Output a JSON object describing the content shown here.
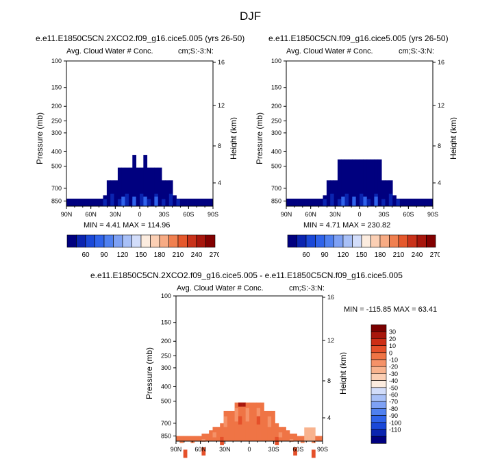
{
  "page": {
    "title": "DJF"
  },
  "colors": {
    "pos_scale": [
      "#00007f",
      "#0a24b0",
      "#1a48d8",
      "#2f63ea",
      "#4f80f0",
      "#7ea1f4",
      "#a8c0f7",
      "#d2ddfa",
      "#fcecdf",
      "#fbcfb4",
      "#f7ab84",
      "#f08050",
      "#e5582c",
      "#c9321a",
      "#a8160c",
      "#820000"
    ],
    "diff_scale": [
      "#00007f",
      "#0a24b0",
      "#1a48d8",
      "#2f63ea",
      "#4f80f0",
      "#7ea1f4",
      "#a8c0f7",
      "#d2ddfa",
      "#fcecdf",
      "#fbcfb4",
      "#f8b38e",
      "#f59268",
      "#ef7445",
      "#e5502a",
      "#cd2e16",
      "#a8160c",
      "#7a0000"
    ]
  },
  "chart_data": [
    {
      "type": "heatmap",
      "title": "e.e11.E1850C5CN.2XCO2.f09_g16.cice5.005 (yrs 26-50)",
      "left_label": "Avg. Cloud Water # Conc.",
      "right_label": "cm;S:-3:N:",
      "ylabel": "Pressure (mb)",
      "ylabel_right": "Height (km)",
      "x_ticks": [
        "90N",
        "60N",
        "30N",
        "0",
        "30S",
        "60S",
        "90S"
      ],
      "y_ticks": [
        "100",
        "150",
        "200",
        "250",
        "300",
        "400",
        "500",
        "700",
        "850"
      ],
      "y_right_ticks": [
        "16",
        "12",
        "8",
        "4"
      ],
      "stats": "MIN =   4.41  MAX = 114.96",
      "min": 4.41,
      "max": 114.96,
      "colorbar_labels": [
        "60",
        "90",
        "120",
        "150",
        "180",
        "210",
        "240",
        "270"
      ]
    },
    {
      "type": "heatmap",
      "title": "e.e11.E1850C5CN.f09_g16.cice5.005 (yrs 26-50)",
      "left_label": "Avg. Cloud Water # Conc.",
      "right_label": "cm;S:-3:N:",
      "ylabel": "Pressure (mb)",
      "ylabel_right": "Height (km)",
      "x_ticks": [
        "90N",
        "60N",
        "30N",
        "0",
        "30S",
        "60S",
        "90S"
      ],
      "y_ticks": [
        "100",
        "150",
        "200",
        "250",
        "300",
        "400",
        "500",
        "700",
        "850"
      ],
      "y_right_ticks": [
        "16",
        "12",
        "8",
        "4"
      ],
      "stats": "MIN =   4.71  MAX = 230.82",
      "min": 4.71,
      "max": 230.82,
      "colorbar_labels": [
        "60",
        "90",
        "120",
        "150",
        "180",
        "210",
        "240",
        "270"
      ]
    },
    {
      "type": "heatmap",
      "title": "e.e11.E1850C5CN.2XCO2.f09_g16.cice5.005 - e.e11.E1850C5CN.f09_g16.cice5.005",
      "left_label": "Avg. Cloud Water # Conc.",
      "right_label": "cm;S:-3:N:",
      "ylabel": "Pressure (mb)",
      "ylabel_right": "Height (km)",
      "x_ticks": [
        "90N",
        "60N",
        "30N",
        "0",
        "30S",
        "60S",
        "90S"
      ],
      "y_ticks": [
        "100",
        "150",
        "200",
        "250",
        "300",
        "400",
        "500",
        "700",
        "850"
      ],
      "y_right_ticks": [
        "16",
        "12",
        "8",
        "4"
      ],
      "stats": "MIN = -115.85  MAX =  63.41",
      "min": -115.85,
      "max": 63.41,
      "colorbar_labels": [
        "30",
        "20",
        "10",
        "0",
        "-10",
        "-20",
        "-30",
        "-40",
        "-50",
        "-60",
        "-70",
        "-80",
        "-90",
        "-100",
        "-110"
      ]
    }
  ]
}
